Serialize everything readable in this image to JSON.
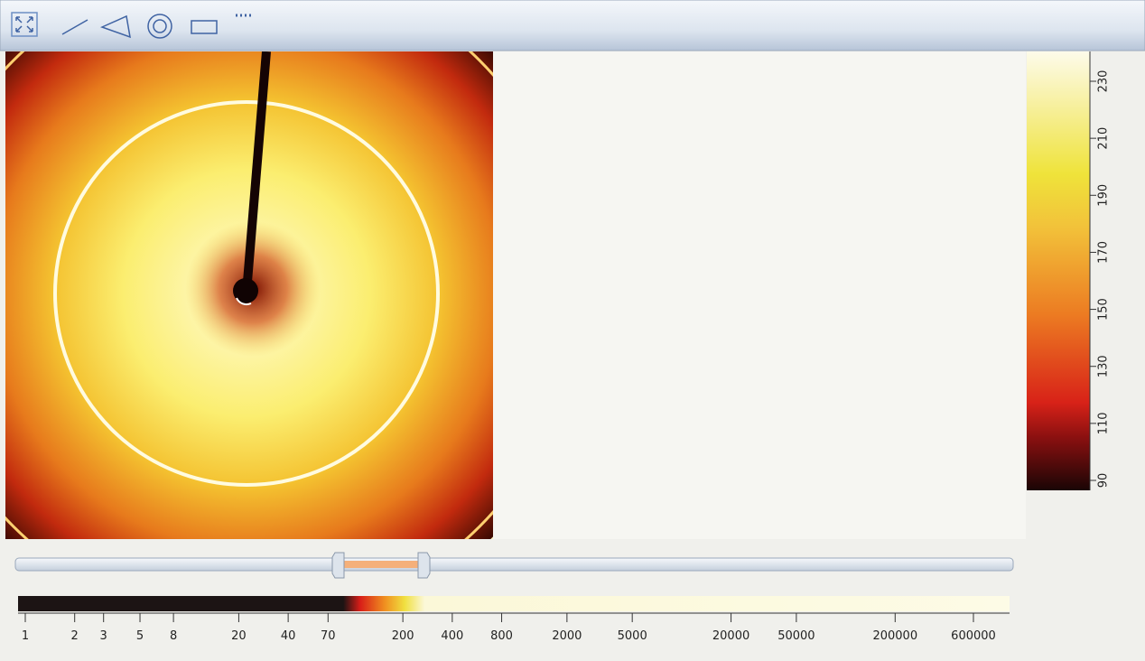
{
  "colorbar": {
    "ticks": [
      90,
      110,
      130,
      150,
      170,
      190,
      210,
      230
    ]
  },
  "range_scale": {
    "ticks": [
      1,
      2,
      3,
      5,
      8,
      20,
      40,
      70,
      200,
      400,
      800,
      2000,
      5000,
      20000,
      50000,
      200000,
      600000
    ]
  }
}
